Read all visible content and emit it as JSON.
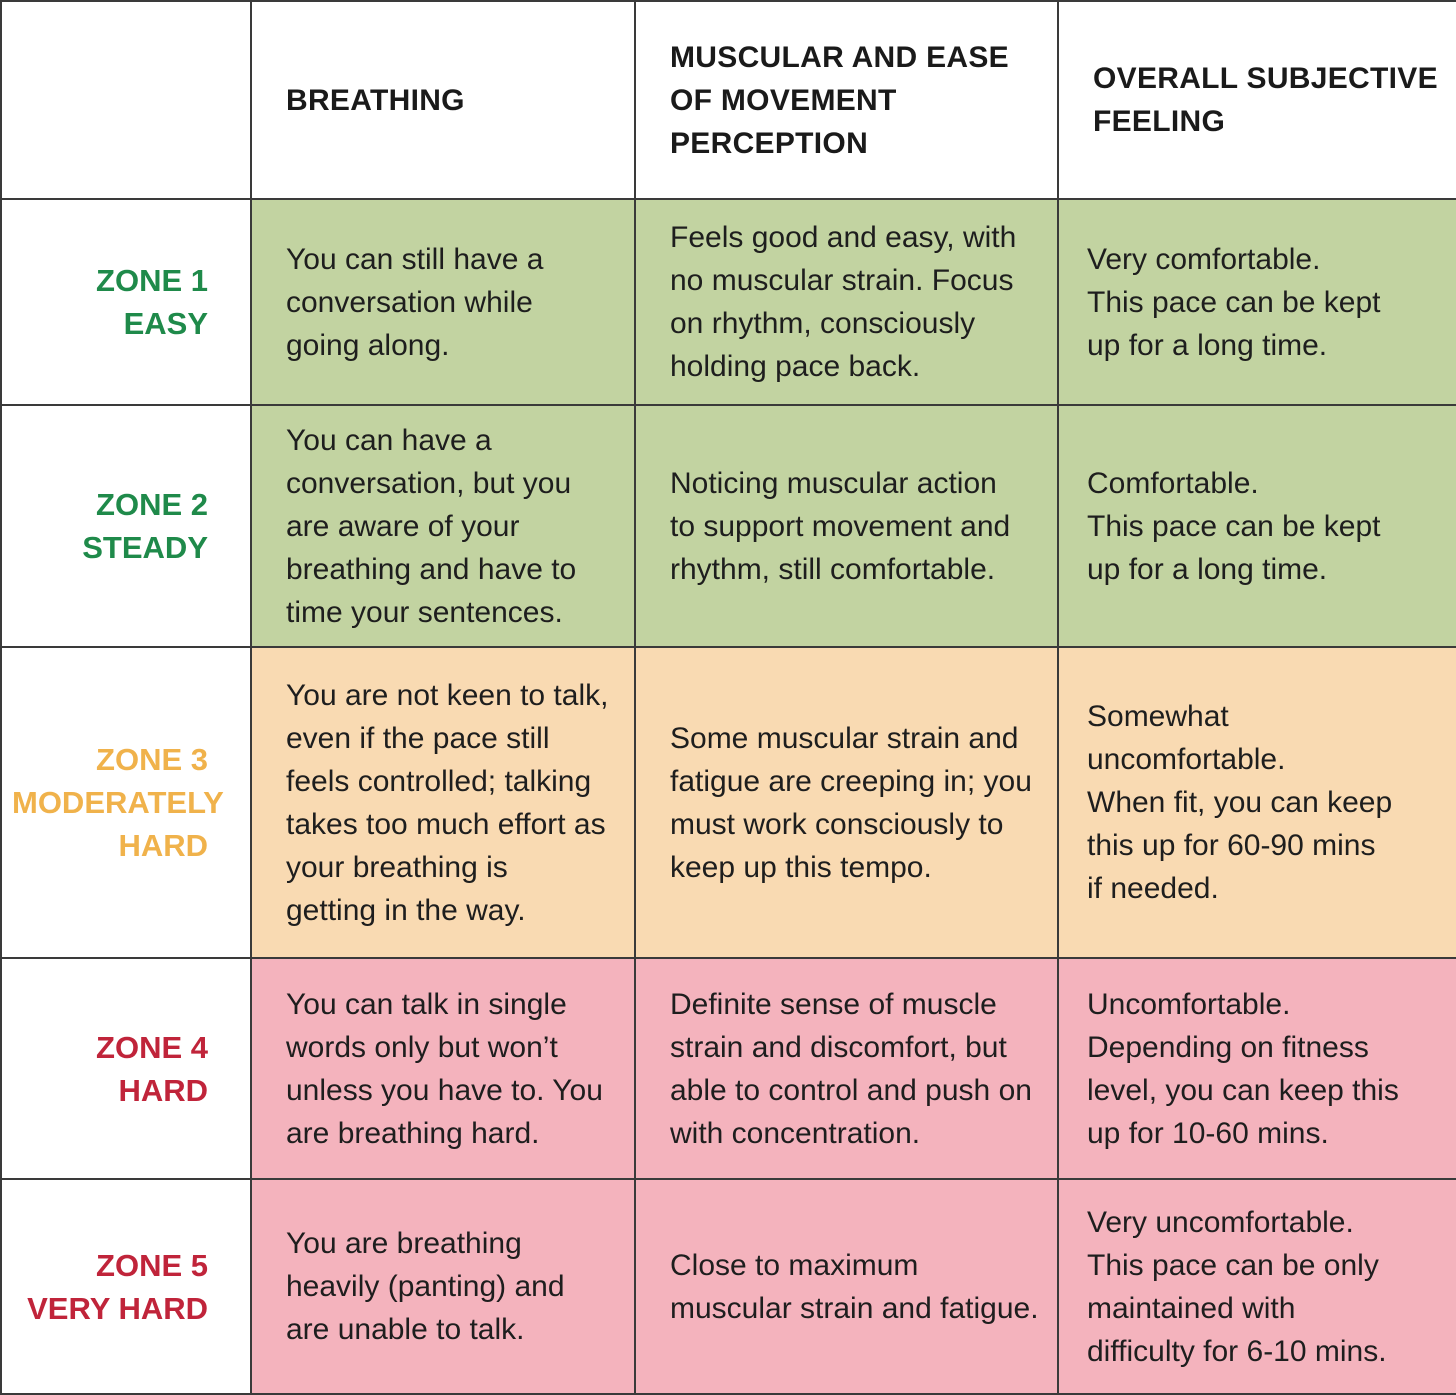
{
  "colors": {
    "green_fill": "#c2d3a1",
    "orange_fill": "#f9dab2",
    "pink_fill": "#f4b3bd",
    "green_text": "#1f8a4a",
    "orange_text": "#f0b24b",
    "red_text": "#c0243a"
  },
  "header": {
    "breathing": [
      "BREATHING"
    ],
    "muscular": [
      "MUSCULAR AND EASE",
      "OF MOVEMENT",
      "PERCEPTION"
    ],
    "feeling": [
      "OVERALL SUBJECTIVE",
      "FEELING"
    ]
  },
  "rows": [
    {
      "zone": [
        "ZONE 1",
        "EASY"
      ],
      "breathing": [
        "You can still have a",
        "conversation while",
        "going along."
      ],
      "muscular": [
        "Feels good and easy, with",
        "no muscular strain. Focus",
        "on rhythm, consciously",
        "holding pace back."
      ],
      "feeling": [
        "Very comfortable.",
        "This pace can be kept",
        "up for a long time."
      ]
    },
    {
      "zone": [
        "ZONE 2",
        "STEADY"
      ],
      "breathing": [
        "You can have a",
        "conversation, but you",
        "are aware of your",
        "breathing and have to",
        "time your sentences."
      ],
      "muscular": [
        "Noticing muscular action",
        "to support movement and",
        "rhythm, still comfortable."
      ],
      "feeling": [
        "Comfortable.",
        "This pace can be kept",
        "up for a long time."
      ]
    },
    {
      "zone": [
        "ZONE 3",
        "MODERATELY",
        "HARD"
      ],
      "breathing": [
        "You are not keen to talk,",
        "even if the pace still",
        "feels controlled; talking",
        "takes too much effort as",
        "your breathing is",
        "getting in the way."
      ],
      "muscular": [
        "Some muscular strain and",
        "fatigue are creeping in; you",
        "must work consciously to",
        "keep up this tempo."
      ],
      "feeling": [
        "Somewhat",
        "uncomfortable.",
        "When fit, you can keep",
        "this up for 60-90 mins",
        "if needed."
      ]
    },
    {
      "zone": [
        "ZONE 4",
        "HARD"
      ],
      "breathing": [
        "You can talk in single",
        "words only but won’t",
        "unless you have to. You",
        "are breathing hard."
      ],
      "muscular": [
        "Definite sense of muscle",
        "strain and discomfort, but",
        "able to control and push on",
        "with concentration."
      ],
      "feeling": [
        "Uncomfortable.",
        "Depending on fitness",
        "level, you can keep this",
        "up for 10-60 mins."
      ]
    },
    {
      "zone": [
        "ZONE 5",
        "VERY HARD"
      ],
      "breathing": [
        "You are breathing",
        "heavily (panting) and",
        "are unable to talk."
      ],
      "muscular": [
        "Close to maximum",
        "muscular strain and fatigue."
      ],
      "feeling": [
        "Very uncomfortable.",
        "This pace can be only",
        "maintained with",
        "difficulty for 6-10 mins."
      ]
    }
  ]
}
